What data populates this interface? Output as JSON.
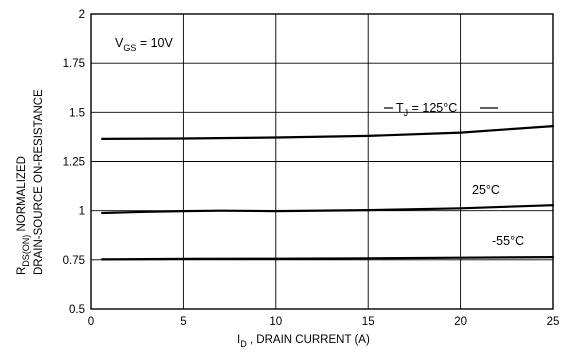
{
  "chart_data": {
    "type": "line",
    "x_label": "I",
    "x_label_subscript": "D",
    "x_label_text": " , DRAIN CURRENT (A)",
    "y_label": {
      "line1_prefix": "R",
      "line1_subscript": "DS(ON)",
      "line1_suffix": " NORMALIZED",
      "line2": "DRAIN-SOURCE ON-RESISTANCE"
    },
    "xlim": [
      0,
      25
    ],
    "ylim": [
      0.5,
      2
    ],
    "x_ticks": [
      "0",
      "5",
      "10",
      "15",
      "20",
      "25"
    ],
    "y_ticks": [
      "0.5",
      "0.75",
      "1",
      "1.25",
      "1.5",
      "1.75",
      "2"
    ],
    "grid": true,
    "condition": {
      "prefix": "V",
      "subscript": "GS",
      "suffix": " = 10V"
    },
    "series": [
      {
        "name": "T_J = 125°C",
        "label_parts": {
          "prefix": "T",
          "subscript": "J",
          "suffix": " = 125°C"
        },
        "x": [
          0.6,
          5,
          10,
          15,
          20,
          25
        ],
        "y": [
          1.365,
          1.367,
          1.372,
          1.38,
          1.397,
          1.43
        ]
      },
      {
        "name": "25°C",
        "label_parts": {
          "prefix": "25°C",
          "subscript": "",
          "suffix": ""
        },
        "x": [
          0.6,
          3,
          5,
          7,
          10,
          15,
          20,
          25
        ],
        "y": [
          0.988,
          0.994,
          0.998,
          1.0,
          0.998,
          1.003,
          1.012,
          1.028
        ]
      },
      {
        "name": "-55°C",
        "label_parts": {
          "prefix": "-55°C",
          "subscript": "",
          "suffix": ""
        },
        "x": [
          0.6,
          5,
          10,
          15,
          20,
          25
        ],
        "y": [
          0.752,
          0.755,
          0.756,
          0.758,
          0.761,
          0.764
        ]
      }
    ]
  }
}
